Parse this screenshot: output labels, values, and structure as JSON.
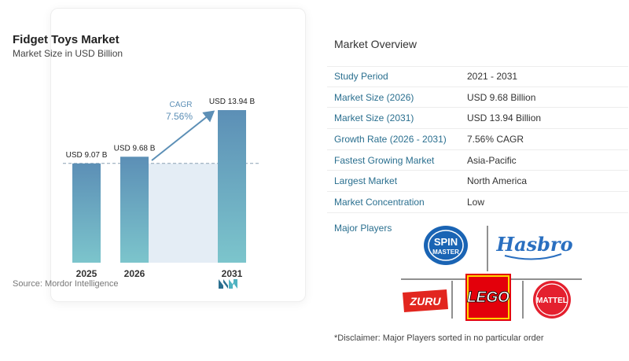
{
  "chart_data": {
    "type": "bar",
    "title": "Fidget Toys Market",
    "subtitle": "Market Size in USD Billion",
    "categories": [
      "2025",
      "2026",
      "2031"
    ],
    "values": [
      9.07,
      9.68,
      13.94
    ],
    "data_labels": [
      "USD 9.07 B",
      "USD 9.68 B",
      "USD 13.94 B"
    ],
    "annotation": {
      "label": "CAGR",
      "value": "7.56%"
    },
    "reference_line": 9.07,
    "colors": {
      "bar_top": "#5c8fb6",
      "bar_bottom": "#7cc5cc",
      "band": "#e4edf5",
      "arrow": "#5c8fb6"
    },
    "source": "Source: Mordor Intelligence"
  },
  "overview": {
    "title": "Market Overview",
    "rows": [
      {
        "label": "Study Period",
        "value": "2021 - 2031"
      },
      {
        "label": "Market Size (2026)",
        "value": "USD 9.68 Billion"
      },
      {
        "label": "Market Size (2031)",
        "value": "USD 13.94 Billion"
      },
      {
        "label": "Growth Rate (2026 - 2031)",
        "value": "7.56% CAGR"
      },
      {
        "label": "Fastest Growing Market",
        "value": "Asia-Pacific"
      },
      {
        "label": "Largest Market",
        "value": "North America"
      },
      {
        "label": "Market Concentration",
        "value": "Low"
      }
    ]
  },
  "players": {
    "label": "Major Players",
    "logos": {
      "spin_line1": "SPIN",
      "spin_line2": "MASTER",
      "hasbro": "Hasbro",
      "zuru": "ZURU",
      "lego": "LEGO",
      "mattel": "MATTEL"
    }
  },
  "disclaimer": "*Disclaimer: Major Players sorted in no particular order"
}
